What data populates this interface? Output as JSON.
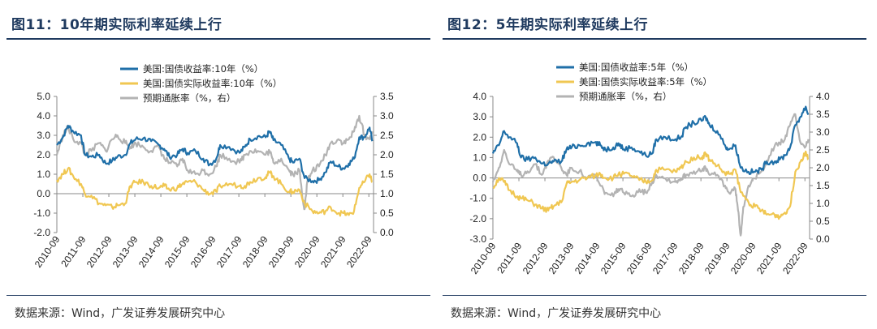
{
  "charts": [
    {
      "figure_title": "图11：10年期实际利率延续上行",
      "source_note": "数据来源：Wind，广发证券发展研究中心"
    },
    {
      "figure_title": "图12：5年期实际利率延续上行",
      "source_note": "数据来源：Wind，广发证券发展研究中心"
    }
  ],
  "colors": {
    "nominal": "#1f6fa8",
    "real": "#f0c752",
    "inflation": "#b3b3b3",
    "axis": "#888888"
  },
  "chart_data": [
    {
      "type": "line",
      "title": "10年期实际利率延续上行",
      "x_categories": [
        "2010-09",
        "2011-09",
        "2012-09",
        "2013-09",
        "2014-09",
        "2015-09",
        "2016-09",
        "2017-09",
        "2018-09",
        "2019-09",
        "2020-09",
        "2021-09",
        "2022-09"
      ],
      "y_left": {
        "min": -2.0,
        "max": 5.0,
        "step": 1.0,
        "tick_labels": [
          "-2.0",
          "-1.0",
          "0.0",
          "1.0",
          "2.0",
          "3.0",
          "4.0",
          "5.0"
        ]
      },
      "y_right": {
        "min": 0.0,
        "max": 3.5,
        "step": 0.5,
        "tick_labels": [
          "0.0",
          "0.5",
          "1.0",
          "1.5",
          "2.0",
          "2.5",
          "3.0",
          "3.5"
        ]
      },
      "legend": [
        "美国:国债收益率:10年（%）",
        "美国:国债实际收益率:10年（%）",
        "预期通胀率（%，右）"
      ],
      "series": [
        {
          "name": "美国:国债收益率:10年（%）",
          "axis": "left",
          "color_key": "nominal",
          "x": [
            2010.67,
            2010.9,
            2011.1,
            2011.3,
            2011.6,
            2011.75,
            2012.0,
            2012.3,
            2012.55,
            2012.8,
            2013.0,
            2013.3,
            2013.5,
            2013.7,
            2014.0,
            2014.3,
            2014.6,
            2014.8,
            2015.0,
            2015.3,
            2015.5,
            2015.7,
            2016.0,
            2016.3,
            2016.55,
            2016.8,
            2016.95,
            2017.3,
            2017.7,
            2017.9,
            2018.1,
            2018.4,
            2018.7,
            2018.85,
            2019.0,
            2019.3,
            2019.6,
            2019.75,
            2020.0,
            2020.2,
            2020.5,
            2020.75,
            2021.0,
            2021.2,
            2021.5,
            2021.7,
            2021.9,
            2022.1,
            2022.3,
            2022.5,
            2022.7,
            2022.8
          ],
          "y": [
            2.5,
            2.9,
            3.5,
            3.2,
            3.0,
            2.0,
            1.9,
            2.0,
            1.55,
            1.7,
            1.9,
            2.0,
            2.6,
            2.8,
            2.85,
            2.7,
            2.5,
            2.3,
            1.9,
            2.0,
            2.3,
            2.1,
            2.2,
            1.8,
            1.5,
            1.8,
            2.5,
            2.4,
            2.1,
            2.4,
            2.8,
            2.95,
            2.9,
            3.2,
            2.75,
            2.5,
            1.8,
            1.6,
            1.8,
            0.8,
            0.65,
            0.7,
            1.1,
            1.65,
            1.4,
            1.3,
            1.55,
            1.8,
            2.9,
            2.9,
            3.4,
            2.7
          ]
        },
        {
          "name": "美国:国债实际收益率:10年（%）",
          "axis": "left",
          "color_key": "real",
          "x": [
            2010.67,
            2010.9,
            2011.1,
            2011.3,
            2011.6,
            2011.75,
            2012.0,
            2012.3,
            2012.55,
            2012.8,
            2013.0,
            2013.3,
            2013.5,
            2013.7,
            2014.0,
            2014.3,
            2014.6,
            2014.8,
            2015.0,
            2015.3,
            2015.5,
            2015.7,
            2016.0,
            2016.3,
            2016.55,
            2016.8,
            2016.95,
            2017.3,
            2017.7,
            2017.9,
            2018.1,
            2018.4,
            2018.7,
            2018.85,
            2019.0,
            2019.3,
            2019.6,
            2019.75,
            2020.0,
            2020.2,
            2020.5,
            2020.75,
            2021.0,
            2021.2,
            2021.5,
            2021.7,
            2021.9,
            2022.1,
            2022.3,
            2022.5,
            2022.7,
            2022.8
          ],
          "y": [
            0.7,
            1.0,
            1.3,
            0.9,
            0.5,
            0.0,
            -0.1,
            -0.5,
            -0.6,
            -0.7,
            -0.6,
            -0.5,
            0.4,
            0.6,
            0.6,
            0.4,
            0.3,
            0.4,
            0.2,
            0.3,
            0.5,
            0.6,
            0.6,
            0.2,
            0.0,
            0.1,
            0.4,
            0.5,
            0.4,
            0.4,
            0.6,
            0.8,
            0.85,
            1.1,
            0.9,
            0.5,
            0.1,
            0.1,
            0.2,
            -0.5,
            -0.9,
            -1.0,
            -0.9,
            -0.7,
            -1.0,
            -1.0,
            -1.1,
            -0.9,
            0.3,
            0.6,
            1.0,
            0.6
          ]
        },
        {
          "name": "预期通胀率（%，右）",
          "axis": "right",
          "color_key": "inflation",
          "x": [
            2010.67,
            2010.9,
            2011.1,
            2011.3,
            2011.6,
            2011.75,
            2012.0,
            2012.3,
            2012.55,
            2012.8,
            2013.0,
            2013.3,
            2013.5,
            2013.7,
            2014.0,
            2014.3,
            2014.6,
            2014.8,
            2015.0,
            2015.3,
            2015.5,
            2015.7,
            2016.0,
            2016.3,
            2016.55,
            2016.8,
            2016.95,
            2017.3,
            2017.7,
            2017.9,
            2018.1,
            2018.4,
            2018.7,
            2018.85,
            2019.0,
            2019.3,
            2019.6,
            2019.75,
            2020.0,
            2020.1,
            2020.2,
            2020.3,
            2020.5,
            2020.75,
            2021.0,
            2021.2,
            2021.5,
            2021.7,
            2021.9,
            2022.1,
            2022.3,
            2022.5,
            2022.7,
            2022.8
          ],
          "y": [
            2.0,
            2.5,
            2.7,
            2.4,
            2.3,
            2.0,
            2.1,
            2.3,
            2.1,
            2.4,
            2.5,
            2.3,
            2.2,
            2.3,
            2.2,
            2.1,
            2.2,
            1.9,
            1.8,
            1.7,
            1.9,
            1.6,
            1.5,
            1.6,
            1.5,
            1.7,
            2.0,
            1.9,
            1.8,
            2.0,
            2.1,
            2.1,
            2.0,
            2.1,
            1.8,
            1.9,
            1.6,
            1.5,
            1.6,
            1.0,
            0.6,
            1.3,
            1.6,
            1.7,
            2.0,
            2.3,
            2.4,
            2.3,
            2.4,
            2.6,
            3.0,
            2.5,
            2.4,
            2.6
          ]
        }
      ]
    },
    {
      "type": "line",
      "title": "5年期实际利率延续上行",
      "x_categories": [
        "2010-09",
        "2011-09",
        "2012-09",
        "2013-09",
        "2014-09",
        "2015-09",
        "2016-09",
        "2017-09",
        "2018-09",
        "2019-09",
        "2020-09",
        "2021-09",
        "2022-09"
      ],
      "y_left": {
        "min": -3.0,
        "max": 4.0,
        "step": 1.0,
        "tick_labels": [
          "-3.0",
          "-2.0",
          "-1.0",
          "0.0",
          "1.0",
          "2.0",
          "3.0",
          "4.0"
        ]
      },
      "y_right": {
        "min": 0.0,
        "max": 4.0,
        "step": 0.5,
        "tick_labels": [
          "0.0",
          "0.5",
          "1.0",
          "1.5",
          "2.0",
          "2.5",
          "3.0",
          "3.5",
          "4.0"
        ]
      },
      "legend": [
        "美国:国债收益率:5年（%）",
        "美国:国债实际收益率:5年（%）",
        "预期通胀率（%，右）"
      ],
      "series": [
        {
          "name": "美国:国债收益率:5年（%）",
          "axis": "left",
          "color_key": "nominal",
          "x": [
            2010.67,
            2010.9,
            2011.1,
            2011.3,
            2011.6,
            2011.75,
            2012.0,
            2012.3,
            2012.55,
            2012.8,
            2013.0,
            2013.3,
            2013.5,
            2013.7,
            2014.0,
            2014.3,
            2014.6,
            2014.8,
            2015.0,
            2015.3,
            2015.5,
            2015.7,
            2016.0,
            2016.3,
            2016.55,
            2016.8,
            2016.95,
            2017.3,
            2017.7,
            2017.9,
            2018.1,
            2018.4,
            2018.7,
            2018.85,
            2019.0,
            2019.3,
            2019.6,
            2019.75,
            2020.0,
            2020.2,
            2020.5,
            2020.75,
            2021.0,
            2021.2,
            2021.5,
            2021.7,
            2021.9,
            2022.1,
            2022.3,
            2022.5,
            2022.7,
            2022.8
          ],
          "y": [
            1.2,
            1.6,
            2.3,
            2.0,
            1.7,
            1.0,
            0.9,
            1.0,
            0.7,
            0.7,
            0.8,
            0.8,
            1.4,
            1.5,
            1.6,
            1.7,
            1.75,
            1.6,
            1.4,
            1.5,
            1.7,
            1.4,
            1.5,
            1.3,
            1.1,
            1.2,
            1.9,
            2.0,
            1.9,
            2.0,
            2.5,
            2.7,
            2.8,
            3.0,
            2.6,
            2.3,
            1.6,
            1.4,
            1.6,
            0.5,
            0.3,
            0.3,
            0.4,
            0.8,
            0.8,
            0.9,
            1.1,
            1.5,
            2.6,
            3.0,
            3.5,
            3.1
          ]
        },
        {
          "name": "美国:国债实际收益率:5年（%）",
          "axis": "left",
          "color_key": "real",
          "x": [
            2010.67,
            2010.9,
            2011.1,
            2011.3,
            2011.6,
            2011.75,
            2012.0,
            2012.3,
            2012.55,
            2012.8,
            2013.0,
            2013.3,
            2013.5,
            2013.7,
            2014.0,
            2014.3,
            2014.6,
            2014.8,
            2015.0,
            2015.3,
            2015.5,
            2015.7,
            2016.0,
            2016.3,
            2016.55,
            2016.8,
            2016.95,
            2017.3,
            2017.7,
            2017.9,
            2018.1,
            2018.4,
            2018.7,
            2018.85,
            2019.0,
            2019.3,
            2019.6,
            2019.75,
            2020.0,
            2020.2,
            2020.5,
            2020.75,
            2021.0,
            2021.2,
            2021.5,
            2021.7,
            2021.9,
            2022.1,
            2022.3,
            2022.5,
            2022.7,
            2022.8
          ],
          "y": [
            -0.5,
            0.0,
            -0.2,
            -0.6,
            -0.9,
            -1.0,
            -1.1,
            -1.3,
            -1.5,
            -1.6,
            -1.4,
            -1.2,
            -0.3,
            -0.2,
            -0.1,
            0.0,
            0.1,
            0.2,
            0.0,
            0.0,
            0.2,
            0.2,
            0.1,
            -0.1,
            -0.2,
            -0.1,
            0.4,
            0.4,
            0.3,
            0.5,
            0.8,
            1.0,
            1.0,
            1.2,
            0.9,
            0.6,
            0.2,
            0.2,
            0.4,
            -0.7,
            -1.2,
            -1.4,
            -1.6,
            -1.8,
            -1.8,
            -1.9,
            -1.7,
            -1.4,
            0.3,
            0.8,
            1.3,
            0.9
          ]
        },
        {
          "name": "预期通胀率（%，右）",
          "axis": "right",
          "color_key": "inflation",
          "x": [
            2010.67,
            2010.9,
            2011.1,
            2011.3,
            2011.6,
            2011.75,
            2012.0,
            2012.3,
            2012.55,
            2012.8,
            2013.0,
            2013.3,
            2013.5,
            2013.7,
            2014.0,
            2014.3,
            2014.6,
            2014.8,
            2015.0,
            2015.3,
            2015.5,
            2015.7,
            2016.0,
            2016.3,
            2016.55,
            2016.8,
            2016.95,
            2017.3,
            2017.7,
            2017.9,
            2018.1,
            2018.4,
            2018.7,
            2018.85,
            2019.0,
            2019.3,
            2019.6,
            2019.75,
            2020.0,
            2020.1,
            2020.2,
            2020.3,
            2020.5,
            2020.75,
            2021.0,
            2021.2,
            2021.5,
            2021.7,
            2021.9,
            2022.1,
            2022.3,
            2022.5,
            2022.7,
            2022.8
          ],
          "y": [
            1.6,
            2.0,
            2.5,
            2.1,
            1.9,
            1.8,
            1.9,
            2.1,
            1.8,
            2.2,
            2.3,
            2.0,
            1.8,
            2.0,
            1.9,
            1.7,
            1.8,
            1.5,
            1.3,
            1.2,
            1.4,
            1.3,
            1.2,
            1.4,
            1.3,
            1.6,
            1.8,
            1.7,
            1.6,
            1.7,
            1.8,
            1.9,
            1.9,
            2.0,
            1.8,
            1.8,
            1.5,
            1.3,
            1.4,
            0.8,
            0.1,
            0.9,
            1.5,
            1.7,
            1.9,
            2.2,
            2.6,
            2.7,
            2.8,
            3.2,
            3.5,
            2.7,
            2.6,
            2.8
          ]
        }
      ]
    }
  ]
}
